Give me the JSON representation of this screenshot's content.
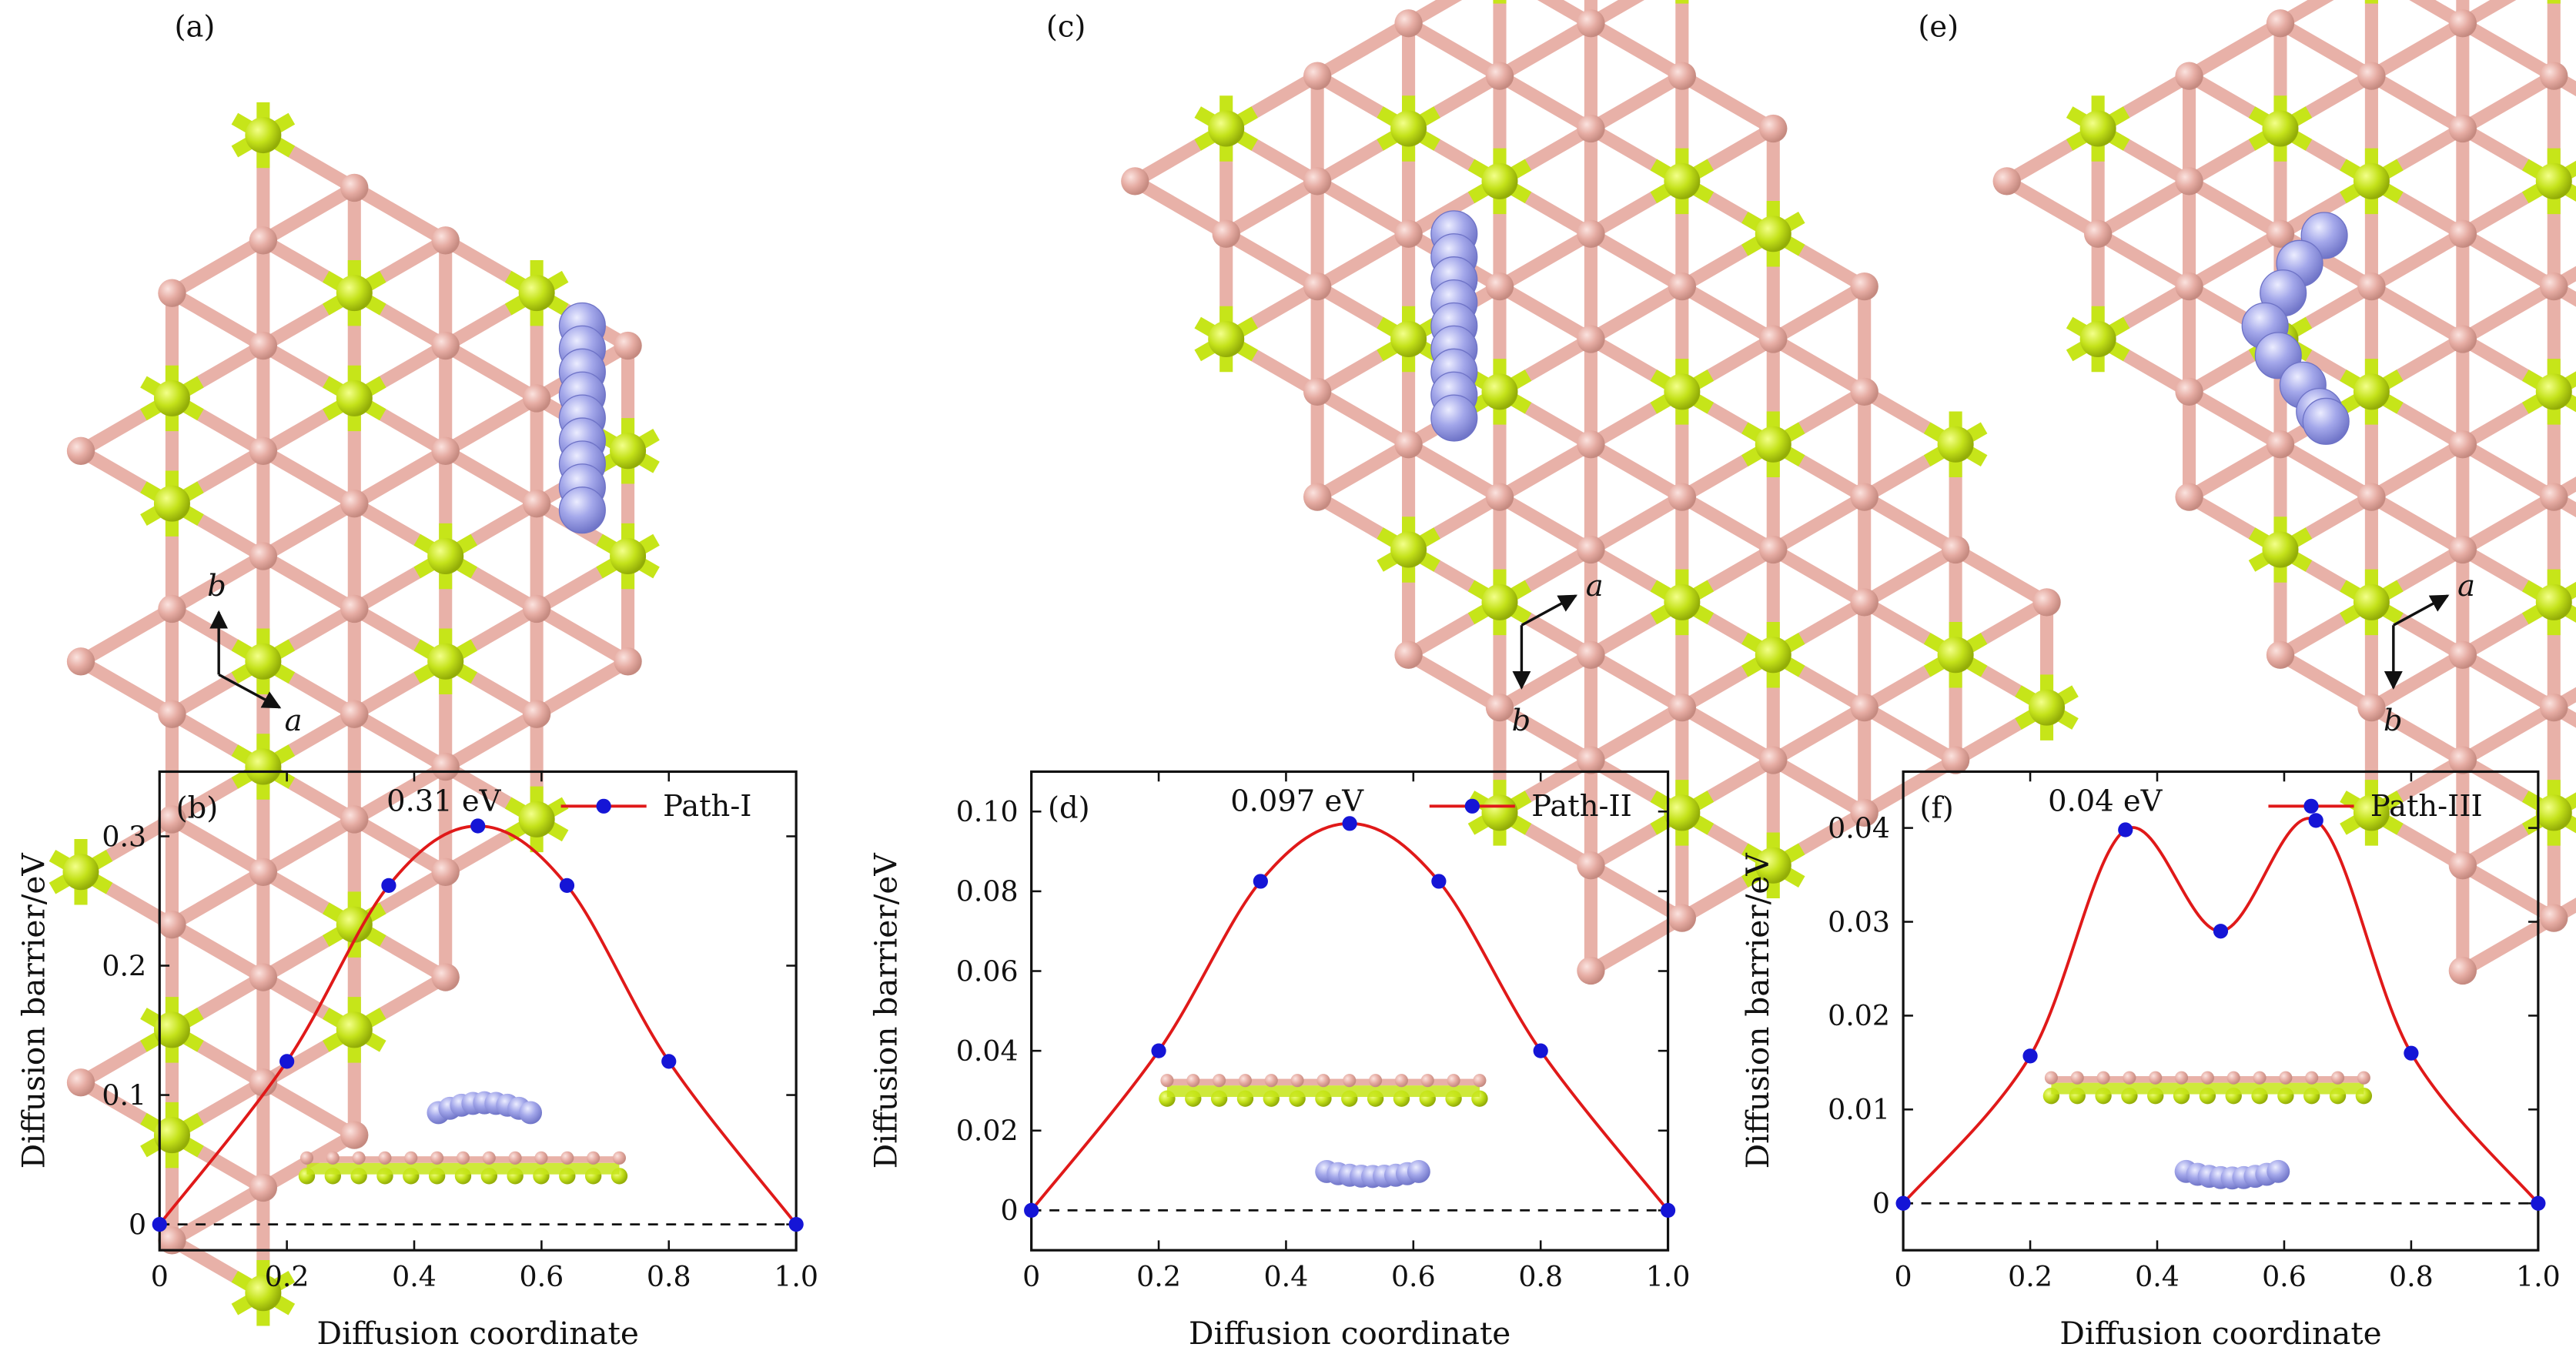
{
  "figure": {
    "panel_labels": [
      "(a)",
      "(c)",
      "(e)"
    ],
    "axis_letters": {
      "a": {
        "x_arrow": "a",
        "y_arrow": "b"
      },
      "c": {
        "up_arrow": "a",
        "down_arrow": "b"
      },
      "e": {
        "up_arrow": "a",
        "down_arrow": "b"
      }
    }
  },
  "colors": {
    "path_line": "#e01919",
    "path_point": "#1515d6",
    "lattice_bond": "#e8b1a8",
    "host_atom": "#e6a9a0",
    "dopant_atom": "#c6e519",
    "li_atom": "#9b9fe6",
    "dashed_baseline": "#111111"
  },
  "chart_data": [
    {
      "type": "line",
      "panel": "(b)",
      "title": "",
      "xlabel": "Diffusion coordinate",
      "ylabel": "Diffusion barrier/eV",
      "xlim": [
        0,
        1.0
      ],
      "ylim": [
        -0.02,
        0.35
      ],
      "xticks": [
        0,
        0.2,
        0.4,
        0.6,
        0.8,
        1.0
      ],
      "xtick_labels": [
        "0",
        "0.2",
        "0.4",
        "0.6",
        "0.8",
        "1.0"
      ],
      "yticks": [
        0,
        0.1,
        0.2,
        0.3
      ],
      "ytick_labels": [
        "0",
        "0.1",
        "0.2",
        "0.3"
      ],
      "series": [
        {
          "name": "Path-I",
          "x": [
            0,
            0.2,
            0.36,
            0.5,
            0.64,
            0.8,
            1.0
          ],
          "y": [
            0,
            0.126,
            0.262,
            0.308,
            0.262,
            0.126,
            0
          ]
        }
      ],
      "annotation": "0.31 eV",
      "legend": "Path-I",
      "legend_position": "top-right",
      "inset": "li-above"
    },
    {
      "type": "line",
      "panel": "(d)",
      "title": "",
      "xlabel": "Diffusion coordinate",
      "ylabel": "Diffusion barrier/eV",
      "xlim": [
        0,
        1.0
      ],
      "ylim": [
        -0.01,
        0.11
      ],
      "xticks": [
        0,
        0.2,
        0.4,
        0.6,
        0.8,
        1.0
      ],
      "xtick_labels": [
        "0",
        "0.2",
        "0.4",
        "0.6",
        "0.8",
        "1.0"
      ],
      "yticks": [
        0,
        0.02,
        0.04,
        0.06,
        0.08,
        0.1
      ],
      "ytick_labels": [
        "0",
        "0.02",
        "0.04",
        "0.06",
        "0.08",
        "0.10"
      ],
      "series": [
        {
          "name": "Path-II",
          "x": [
            0,
            0.2,
            0.36,
            0.5,
            0.64,
            0.8,
            1.0
          ],
          "y": [
            0,
            0.04,
            0.0825,
            0.097,
            0.0825,
            0.04,
            0
          ]
        }
      ],
      "annotation": "0.097 eV",
      "legend": "Path-II",
      "legend_position": "top-right",
      "inset": "li-below"
    },
    {
      "type": "line",
      "panel": "(f)",
      "title": "",
      "xlabel": "Diffusion coordinate",
      "ylabel": "Diffusion barrier/eV",
      "xlim": [
        0,
        1.0
      ],
      "ylim": [
        -0.005,
        0.046
      ],
      "xticks": [
        0,
        0.2,
        0.4,
        0.6,
        0.8,
        1.0
      ],
      "xtick_labels": [
        "0",
        "0.2",
        "0.4",
        "0.6",
        "0.8",
        "1.0"
      ],
      "yticks": [
        0,
        0.01,
        0.02,
        0.03,
        0.04
      ],
      "ytick_labels": [
        "0",
        "0.01",
        "0.02",
        "0.03",
        "0.04"
      ],
      "series": [
        {
          "name": "Path-III",
          "x": [
            0,
            0.2,
            0.35,
            0.5,
            0.65,
            0.8,
            1.0
          ],
          "y": [
            0,
            0.0157,
            0.0398,
            0.029,
            0.0408,
            0.016,
            0
          ]
        }
      ],
      "annotation": "0.04 eV",
      "legend": "Path-III",
      "legend_position": "top-right",
      "inset": "li-below"
    }
  ]
}
